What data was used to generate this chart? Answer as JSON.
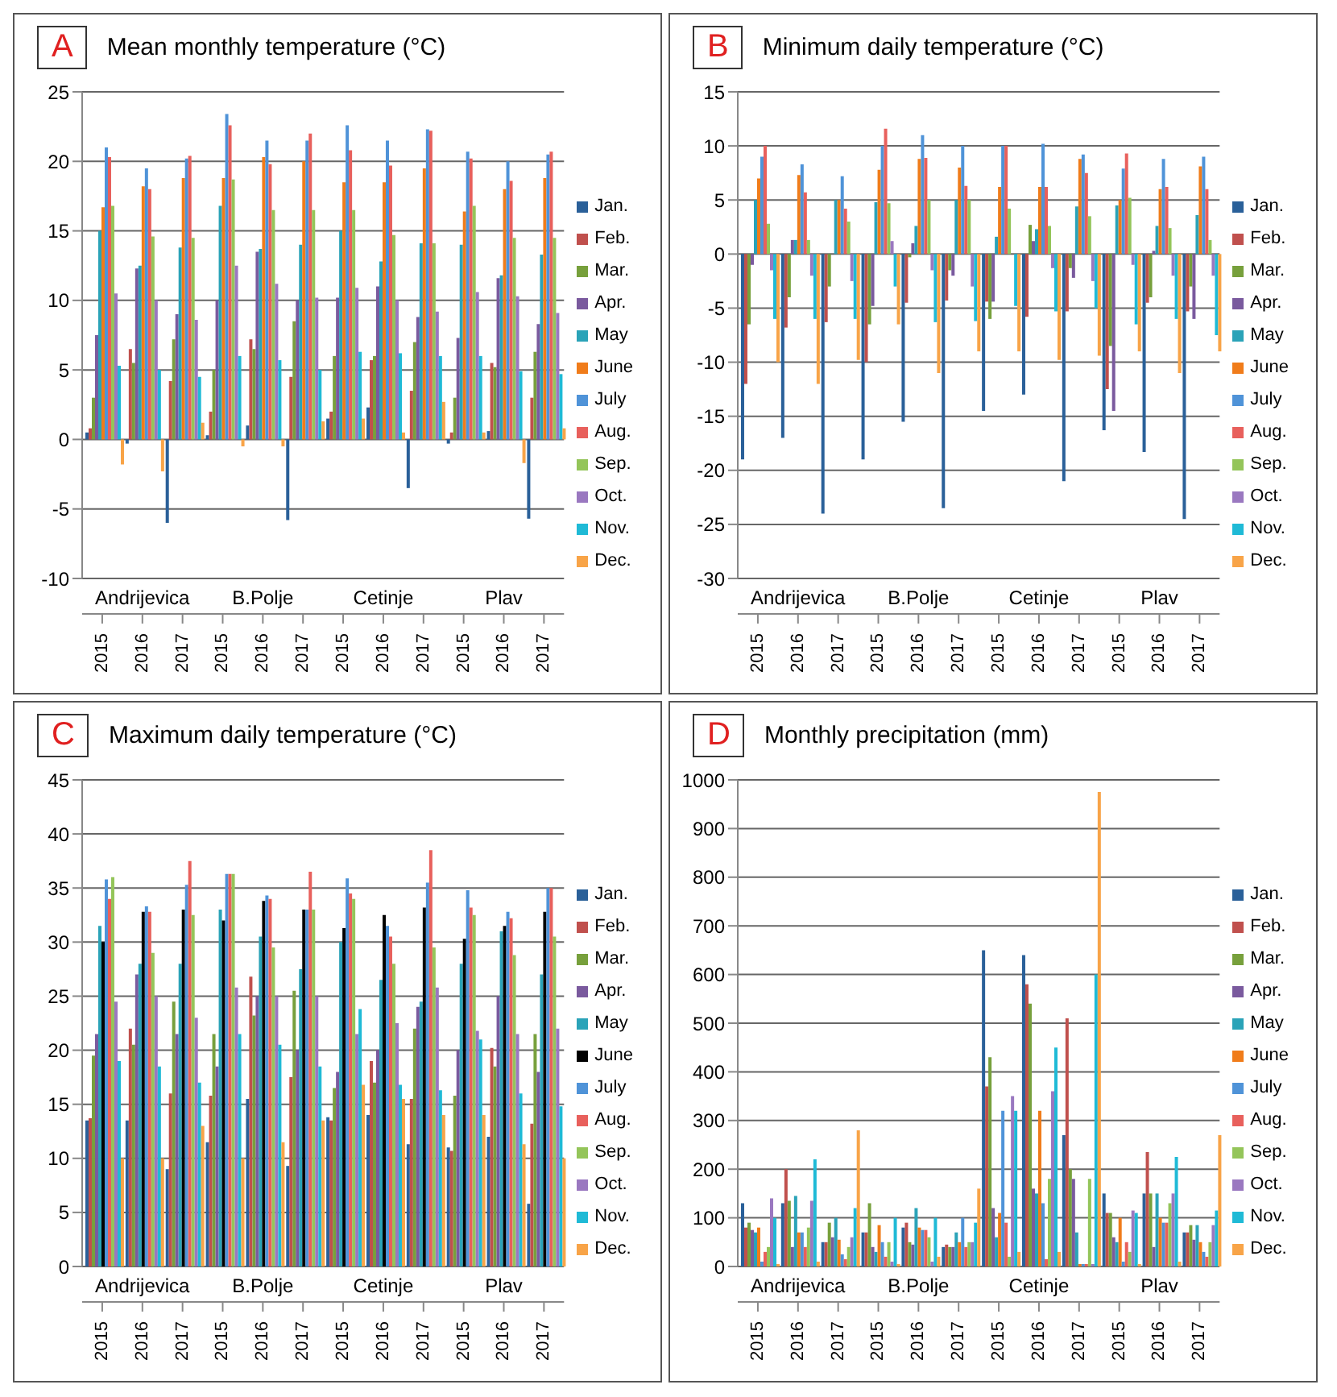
{
  "chart_data": [
    {
      "type": "bar",
      "title": "Mean monthly temperature (°C)",
      "subtitle": "A",
      "categories": [
        "2015",
        "2016",
        "2017",
        "2015",
        "2016",
        "2017",
        "2015",
        "2016",
        "2017",
        "2015",
        "2016",
        "2017"
      ],
      "annotations": [
        "Andrijevica",
        "B.Polje",
        "Cetinje",
        "Plav"
      ],
      "ylim": [
        -10,
        25
      ],
      "yticks": [
        -10,
        -5,
        0,
        5,
        10,
        15,
        20,
        25
      ],
      "grid": "y",
      "legend": "right",
      "series": [
        {
          "name": "Jan.",
          "color": "#2a6099",
          "values": [
            0.5,
            -0.3,
            -6,
            0.3,
            1.0,
            -5.8,
            1.5,
            2.3,
            -3.5,
            -0.3,
            0.6,
            -5.7
          ]
        },
        {
          "name": "Feb.",
          "color": "#c0504d",
          "values": [
            0.8,
            6.5,
            4.2,
            2.0,
            7.2,
            4.5,
            2.0,
            5.7,
            3.5,
            0.5,
            5.5,
            3.0
          ]
        },
        {
          "name": "Mar.",
          "color": "#77a03c",
          "values": [
            3.0,
            5.5,
            7.2,
            5,
            6.5,
            8.5,
            6,
            6.0,
            7.0,
            3.0,
            5.2,
            6.3
          ]
        },
        {
          "name": "Apr.",
          "color": "#7a5a9e",
          "values": [
            7.5,
            12.3,
            9,
            10,
            13.5,
            10,
            10.2,
            11.0,
            8.8,
            7.3,
            11.6,
            8.3
          ]
        },
        {
          "name": "May",
          "color": "#2aa3b8",
          "values": [
            15,
            12.5,
            13.8,
            16.8,
            13.7,
            14.0,
            15.0,
            12.8,
            14.1,
            14.0,
            11.8,
            13.3
          ]
        },
        {
          "name": "June",
          "color": "#f07c1a",
          "values": [
            16.7,
            18.2,
            18.8,
            18.8,
            20.3,
            20.0,
            18.5,
            18.5,
            19.5,
            16.4,
            18.0,
            18.8
          ]
        },
        {
          "name": "July",
          "color": "#4f93d8",
          "values": [
            21,
            19.5,
            20.2,
            23.4,
            21.5,
            21.5,
            22.6,
            21.5,
            22.3,
            20.7,
            20.0,
            20.5
          ]
        },
        {
          "name": "Aug.",
          "color": "#e8605c",
          "values": [
            20.3,
            18.0,
            20.4,
            22.6,
            19.8,
            22.0,
            20.8,
            19.7,
            22.2,
            20.2,
            18.6,
            20.7
          ]
        },
        {
          "name": "Sep.",
          "color": "#94c55a",
          "values": [
            16.8,
            14.6,
            14.5,
            18.7,
            16.5,
            16.5,
            16.5,
            14.7,
            14.1,
            16.8,
            14.5,
            14.5
          ]
        },
        {
          "name": "Oct.",
          "color": "#9a78c0",
          "values": [
            10.5,
            10,
            8.6,
            12.5,
            11.2,
            10.2,
            10.9,
            10,
            9.2,
            10.6,
            10.3,
            9.1
          ]
        },
        {
          "name": "Nov.",
          "color": "#1fbad6",
          "values": [
            5.3,
            5,
            4.5,
            6.0,
            5.7,
            5.0,
            6.3,
            6.2,
            6.0,
            6.0,
            4.9,
            4.7
          ]
        },
        {
          "name": "Dec.",
          "color": "#f8a448",
          "values": [
            -1.8,
            -2.3,
            1.2,
            -0.5,
            -0.5,
            1.3,
            1.5,
            0.5,
            2.7,
            0.5,
            -1.7,
            0.8
          ]
        }
      ]
    },
    {
      "type": "bar",
      "title": "Minimum daily temperature (°C)",
      "subtitle": "B",
      "categories": [
        "2015",
        "2016",
        "2017",
        "2015",
        "2016",
        "2017",
        "2015",
        "2016",
        "2017",
        "2015",
        "2016",
        "2017"
      ],
      "annotations": [
        "Andrijevica",
        "B.Polje",
        "Cetinje",
        "Plav"
      ],
      "ylim": [
        -30,
        15
      ],
      "yticks": [
        -30,
        -25,
        -20,
        -15,
        -10,
        -5,
        0,
        5,
        10,
        15
      ],
      "grid": "y",
      "legend": "right",
      "series": [
        {
          "name": "Jan.",
          "color": "#2a6099",
          "values": [
            -19,
            -17,
            -24,
            -19,
            -15.5,
            -23.5,
            -14.5,
            -13,
            -21,
            -16.3,
            -18.3,
            -24.5
          ]
        },
        {
          "name": "Feb.",
          "color": "#c0504d",
          "values": [
            -12,
            -6.8,
            -6.3,
            -10,
            -4.5,
            -4.3,
            -4.4,
            -5.8,
            -5.3,
            -12.5,
            -4.5,
            -5.3
          ]
        },
        {
          "name": "Mar.",
          "color": "#77a03c",
          "values": [
            -6.5,
            -4,
            -3,
            -6.5,
            -0.3,
            -1.5,
            -6,
            2.7,
            -1.3,
            -8.5,
            -4,
            -3
          ]
        },
        {
          "name": "Apr.",
          "color": "#7a5a9e",
          "values": [
            -1,
            1.3,
            0,
            -4.8,
            1,
            -2,
            -4.4,
            1.2,
            -2.2,
            -14.5,
            0.3,
            -6
          ]
        },
        {
          "name": "May",
          "color": "#2aa3b8",
          "values": [
            5,
            1.3,
            5,
            4.8,
            2.6,
            5,
            1.6,
            2.3,
            4.4,
            4.5,
            2.6,
            3.6
          ]
        },
        {
          "name": "June",
          "color": "#f07c1a",
          "values": [
            7,
            7.3,
            5,
            7.8,
            8.8,
            8,
            6.2,
            6.2,
            8.8,
            5,
            6,
            8.1
          ]
        },
        {
          "name": "July",
          "color": "#4f93d8",
          "values": [
            9,
            8.3,
            7.2,
            10,
            11,
            10,
            10,
            10.2,
            9.2,
            7.9,
            8.8,
            9
          ]
        },
        {
          "name": "Aug.",
          "color": "#e8605c",
          "values": [
            10,
            5.7,
            4.2,
            11.6,
            8.9,
            6.3,
            10,
            6.2,
            7.5,
            9.3,
            6.2,
            6
          ]
        },
        {
          "name": "Sep.",
          "color": "#94c55a",
          "values": [
            2.8,
            1.3,
            3.0,
            4.7,
            5.0,
            5,
            4.2,
            2.6,
            3.5,
            5.2,
            2.4,
            1.3
          ]
        },
        {
          "name": "Oct.",
          "color": "#9a78c0",
          "values": [
            -1.5,
            -2,
            -2.5,
            1.2,
            -1.5,
            -3,
            0,
            -1.3,
            -2.5,
            -1,
            -2,
            -2
          ]
        },
        {
          "name": "Nov.",
          "color": "#1fbad6",
          "values": [
            -6,
            -6,
            -6,
            -3,
            -6.3,
            -6.2,
            -4.8,
            -5.3,
            -5,
            -6.5,
            -6,
            -7.5
          ]
        },
        {
          "name": "Dec.",
          "color": "#f8a448",
          "values": [
            -10,
            -12,
            -9.8,
            -6.5,
            -11,
            -9,
            -9,
            -9.8,
            -9.4,
            -9,
            -11,
            -9
          ]
        }
      ]
    },
    {
      "type": "bar",
      "title": "Maximum daily temperature (°C)",
      "subtitle": "C",
      "categories": [
        "2015",
        "2016",
        "2017",
        "2015",
        "2016",
        "2017",
        "2015",
        "2016",
        "2017",
        "2015",
        "2016",
        "2017"
      ],
      "annotations": [
        "Andrijevica",
        "B.Polje",
        "Cetinje",
        "Plav"
      ],
      "ylim": [
        0,
        45
      ],
      "yticks": [
        0,
        5,
        10,
        15,
        20,
        25,
        30,
        35,
        40,
        45
      ],
      "grid": "y",
      "legend": "right",
      "series": [
        {
          "name": "Jan.",
          "color": "#2a6099",
          "values": [
            13.5,
            13.5,
            9.0,
            11.5,
            15.5,
            9.3,
            13.8,
            14.0,
            11.3,
            11.0,
            12.0,
            5.8
          ]
        },
        {
          "name": "Feb.",
          "color": "#c0504d",
          "values": [
            13.7,
            22.0,
            16.0,
            15.8,
            26.8,
            17.5,
            13.5,
            19.0,
            15.5,
            10.7,
            20.2,
            13.2
          ]
        },
        {
          "name": "Mar.",
          "color": "#77a03c",
          "values": [
            19.5,
            20.5,
            24.5,
            21.5,
            23.2,
            25.5,
            16.5,
            17.0,
            22.0,
            15.8,
            18.5,
            21.5
          ]
        },
        {
          "name": "Apr.",
          "color": "#7a5a9e",
          "values": [
            21.5,
            27.0,
            21.5,
            18.5,
            25,
            20,
            18,
            20,
            24,
            20,
            25,
            18
          ]
        },
        {
          "name": "May",
          "color": "#2aa3b8",
          "values": [
            31.5,
            28.0,
            28.0,
            33.0,
            30.5,
            27.5,
            30,
            26.5,
            24.5,
            28.0,
            31,
            27.0
          ]
        },
        {
          "name": "June",
          "color": "#000000",
          "values": [
            30.0,
            32.8,
            33.0,
            32.0,
            33.8,
            33.0,
            31.3,
            32.5,
            33.2,
            30.3,
            31.5,
            32.8
          ]
        },
        {
          "name": "July",
          "color": "#4f93d8",
          "values": [
            35.8,
            33.3,
            35.3,
            36.3,
            34.3,
            33.0,
            35.9,
            31.5,
            35.5,
            34.8,
            32.8,
            35.0
          ]
        },
        {
          "name": "Aug.",
          "color": "#e8605c",
          "values": [
            34.0,
            32.8,
            37.5,
            36.3,
            34.0,
            36.5,
            34.5,
            30.5,
            38.5,
            33.2,
            32.2,
            35.0
          ]
        },
        {
          "name": "Sep.",
          "color": "#94c55a",
          "values": [
            36.0,
            29.0,
            32.5,
            36.3,
            29.5,
            33.0,
            34.0,
            28.0,
            29.5,
            32.5,
            28.8,
            30.5
          ]
        },
        {
          "name": "Oct.",
          "color": "#9a78c0",
          "values": [
            24.5,
            25.0,
            23.0,
            25.8,
            25.0,
            25.0,
            21.5,
            22.5,
            25.8,
            21.8,
            21.5,
            22.0
          ]
        },
        {
          "name": "Nov.",
          "color": "#1fbad6",
          "values": [
            19.0,
            18.5,
            17.0,
            21.5,
            20.5,
            18.5,
            23.8,
            16.8,
            16.3,
            21.0,
            16.0,
            14.8
          ]
        },
        {
          "name": "Dec.",
          "color": "#f8a448",
          "values": [
            10.0,
            10.0,
            13.0,
            10.0,
            11.5,
            13.5,
            16.8,
            15.5,
            14.0,
            14.0,
            11.3,
            10.0
          ]
        }
      ]
    },
    {
      "type": "bar",
      "title": "Monthly precipitation (mm)",
      "subtitle": "D",
      "categories": [
        "2015",
        "2016",
        "2017",
        "2015",
        "2016",
        "2017",
        "2015",
        "2016",
        "2017",
        "2015",
        "2016",
        "2017"
      ],
      "annotations": [
        "Andrijevica",
        "B.Polje",
        "Cetinje",
        "Plav"
      ],
      "ylim": [
        0,
        1000
      ],
      "yticks": [
        0,
        100,
        200,
        300,
        400,
        500,
        600,
        700,
        800,
        900,
        1000
      ],
      "grid": "y",
      "legend": "right",
      "series": [
        {
          "name": "Jan.",
          "color": "#2a6099",
          "values": [
            130,
            130,
            50,
            70,
            80,
            40,
            650,
            640,
            270,
            150,
            150,
            70
          ]
        },
        {
          "name": "Feb.",
          "color": "#c0504d",
          "values": [
            80,
            200,
            50,
            70,
            90,
            45,
            370,
            580,
            510,
            110,
            235,
            70
          ]
        },
        {
          "name": "Mar.",
          "color": "#77a03c",
          "values": [
            90,
            135,
            90,
            130,
            50,
            40,
            430,
            540,
            200,
            110,
            150,
            85
          ]
        },
        {
          "name": "Apr.",
          "color": "#7a5a9e",
          "values": [
            75,
            40,
            60,
            40,
            45,
            40,
            120,
            160,
            180,
            60,
            40,
            55
          ]
        },
        {
          "name": "May",
          "color": "#2aa3b8",
          "values": [
            70,
            145,
            100,
            30,
            120,
            70,
            60,
            150,
            70,
            50,
            150,
            85
          ]
        },
        {
          "name": "June",
          "color": "#f07c1a",
          "values": [
            80,
            70,
            55,
            85,
            80,
            50,
            110,
            320,
            5,
            100,
            100,
            50
          ]
        },
        {
          "name": "July",
          "color": "#4f93d8",
          "values": [
            10,
            70,
            25,
            50,
            75,
            100,
            320,
            130,
            5,
            10,
            90,
            30
          ]
        },
        {
          "name": "Aug.",
          "color": "#e8605c",
          "values": [
            30,
            40,
            15,
            20,
            75,
            40,
            90,
            15,
            5,
            50,
            90,
            20
          ]
        },
        {
          "name": "Sep.",
          "color": "#94c55a",
          "values": [
            40,
            80,
            40,
            50,
            60,
            50,
            20,
            180,
            180,
            30,
            130,
            50
          ]
        },
        {
          "name": "Oct.",
          "color": "#9a78c0",
          "values": [
            140,
            135,
            60,
            10,
            10,
            50,
            350,
            360,
            5,
            115,
            150,
            85
          ]
        },
        {
          "name": "Nov.",
          "color": "#1fbad6",
          "values": [
            100,
            220,
            120,
            100,
            100,
            90,
            320,
            450,
            600,
            110,
            225,
            115
          ]
        },
        {
          "name": "Dec.",
          "color": "#f8a448",
          "values": [
            5,
            10,
            280,
            5,
            20,
            160,
            30,
            30,
            975,
            5,
            10,
            270
          ]
        }
      ]
    }
  ]
}
